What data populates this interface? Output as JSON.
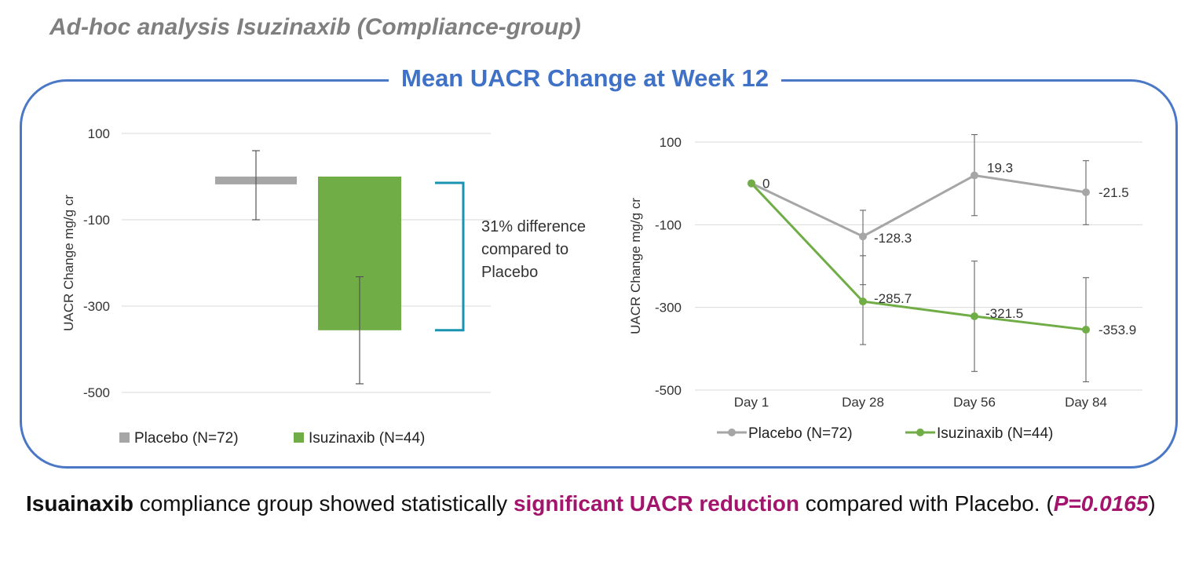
{
  "page_title": "Ad-hoc analysis Isuzinaxib (Compliance-group)",
  "panel_title": "Mean UACR Change at Week 12",
  "annotation": "31% difference compared to Placebo",
  "footer": {
    "part1_bold": "Isuainaxib",
    "part2": " compliance group showed statistically ",
    "part3_highlight": "significant UACR reduction",
    "part4": " compared with Placebo. (",
    "part5_pvalue": "P=0.0165",
    "part6": ")"
  },
  "colors": {
    "placebo": "#a6a6a6",
    "isuzinaxib": "#70ad47",
    "bracket": "#1a93b0",
    "accent": "#4a78c6",
    "highlight": "#a3146c"
  },
  "chart_data": [
    {
      "type": "bar",
      "ylabel": "UACR Change mg/g cr",
      "ylim": [
        -500,
        100
      ],
      "yticks": [
        100,
        -100,
        -300,
        -500
      ],
      "grid": true,
      "legend_position": "bottom",
      "series": [
        {
          "name": "Placebo (N=72)",
          "value": -18,
          "error_low": -100,
          "error_high": 60,
          "color": "#a6a6a6"
        },
        {
          "name": "Isuzinaxib (N=44)",
          "value": -356,
          "error_low": -480,
          "error_high": -232,
          "color": "#70ad47"
        }
      ]
    },
    {
      "type": "line",
      "ylabel": "UACR Change mg/g cr",
      "ylim": [
        -500,
        100
      ],
      "yticks": [
        100,
        -100,
        -300,
        -500
      ],
      "categories": [
        "Day 1",
        "Day 28",
        "Day 56",
        "Day 84"
      ],
      "grid": true,
      "legend_position": "bottom",
      "series": [
        {
          "name": "Placebo (N=72)",
          "values": [
            0,
            -128.3,
            19.3,
            -21.5
          ],
          "labels": [
            "0",
            "-128.3",
            "19.3",
            "-21.5"
          ],
          "error_low": [
            null,
            -245,
            -78,
            -100
          ],
          "error_high": [
            null,
            -65,
            118,
            55
          ],
          "color": "#a6a6a6"
        },
        {
          "name": "Isuzinaxib (N=44)",
          "values": [
            0,
            -285.7,
            -321.5,
            -353.9
          ],
          "labels": [
            "",
            "-285.7",
            "-321.5",
            "-353.9"
          ],
          "error_low": [
            null,
            -390,
            -455,
            -480
          ],
          "error_high": [
            null,
            -175,
            -188,
            -228
          ],
          "color": "#70ad47"
        }
      ]
    }
  ]
}
